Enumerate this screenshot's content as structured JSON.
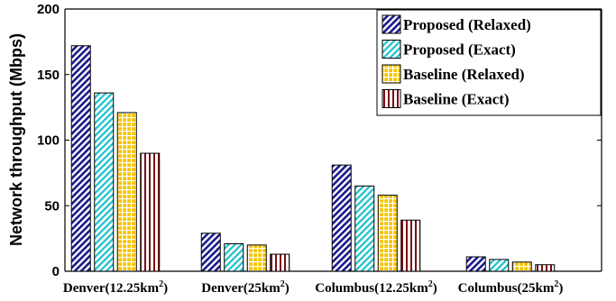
{
  "chart_data": {
    "type": "bar",
    "ylabel": "Network throughput (Mbps)",
    "ylim": [
      0,
      200
    ],
    "yticks": [
      0,
      50,
      100,
      150,
      200
    ],
    "categories": [
      {
        "base": "Denver",
        "prefix": "(12.25km",
        "sup": "2",
        "suffix": ")"
      },
      {
        "base": "Denver",
        "prefix": "(25km",
        "sup": "2",
        "suffix": ")"
      },
      {
        "base": "Columbus",
        "prefix": "(12.25km",
        "sup": "2",
        "suffix": ")"
      },
      {
        "base": "Columbus",
        "prefix": "(25km",
        "sup": "2",
        "suffix": ")"
      }
    ],
    "series": [
      {
        "name": "Proposed (Relaxed)",
        "values": [
          172,
          29,
          81,
          11
        ],
        "color": "#1a1a8c",
        "fill": "#ffffff",
        "pattern": "diag-blue"
      },
      {
        "name": "Proposed (Exact)",
        "values": [
          136,
          21,
          65,
          9
        ],
        "color": "#19c2cc",
        "fill": "#ffffff",
        "pattern": "diag-cyan"
      },
      {
        "name": "Baseline (Relaxed)",
        "values": [
          121,
          20,
          58,
          7
        ],
        "color": "#ffffff",
        "fill": "#f5c400",
        "pattern": "grid-yellow"
      },
      {
        "name": "Baseline (Exact)",
        "values": [
          90,
          13,
          39,
          5
        ],
        "color": "#7a0f14",
        "fill": "#ffffff",
        "pattern": "vert-red"
      }
    ],
    "legend_position": "top-right",
    "grid": false
  }
}
